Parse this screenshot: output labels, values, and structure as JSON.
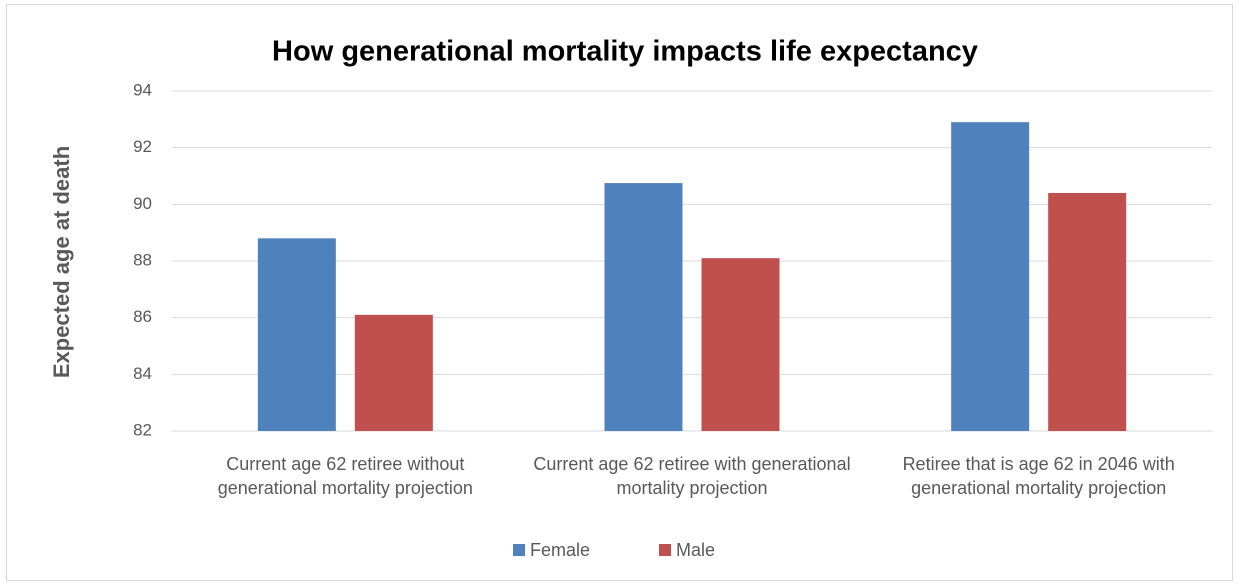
{
  "chart_data": {
    "type": "bar",
    "title": "How generational mortality impacts life expectancy",
    "y_label": "Expected age at death",
    "categories": [
      "Current age 62 retiree without generational mortality projection",
      "Current age 62 retiree with generational mortality projection",
      "Retiree that is age 62 in 2046 with generational mortality projection"
    ],
    "series": [
      {
        "name": "Female",
        "color": "#4f81bd",
        "values": [
          88.8,
          90.75,
          92.9
        ]
      },
      {
        "name": "Male",
        "color": "#c0504d",
        "values": [
          86.1,
          88.1,
          90.4
        ]
      }
    ],
    "ylim": [
      82,
      94
    ],
    "yticks": [
      82,
      84,
      86,
      88,
      90,
      92,
      94
    ],
    "grid": true,
    "legend": "bottom"
  }
}
